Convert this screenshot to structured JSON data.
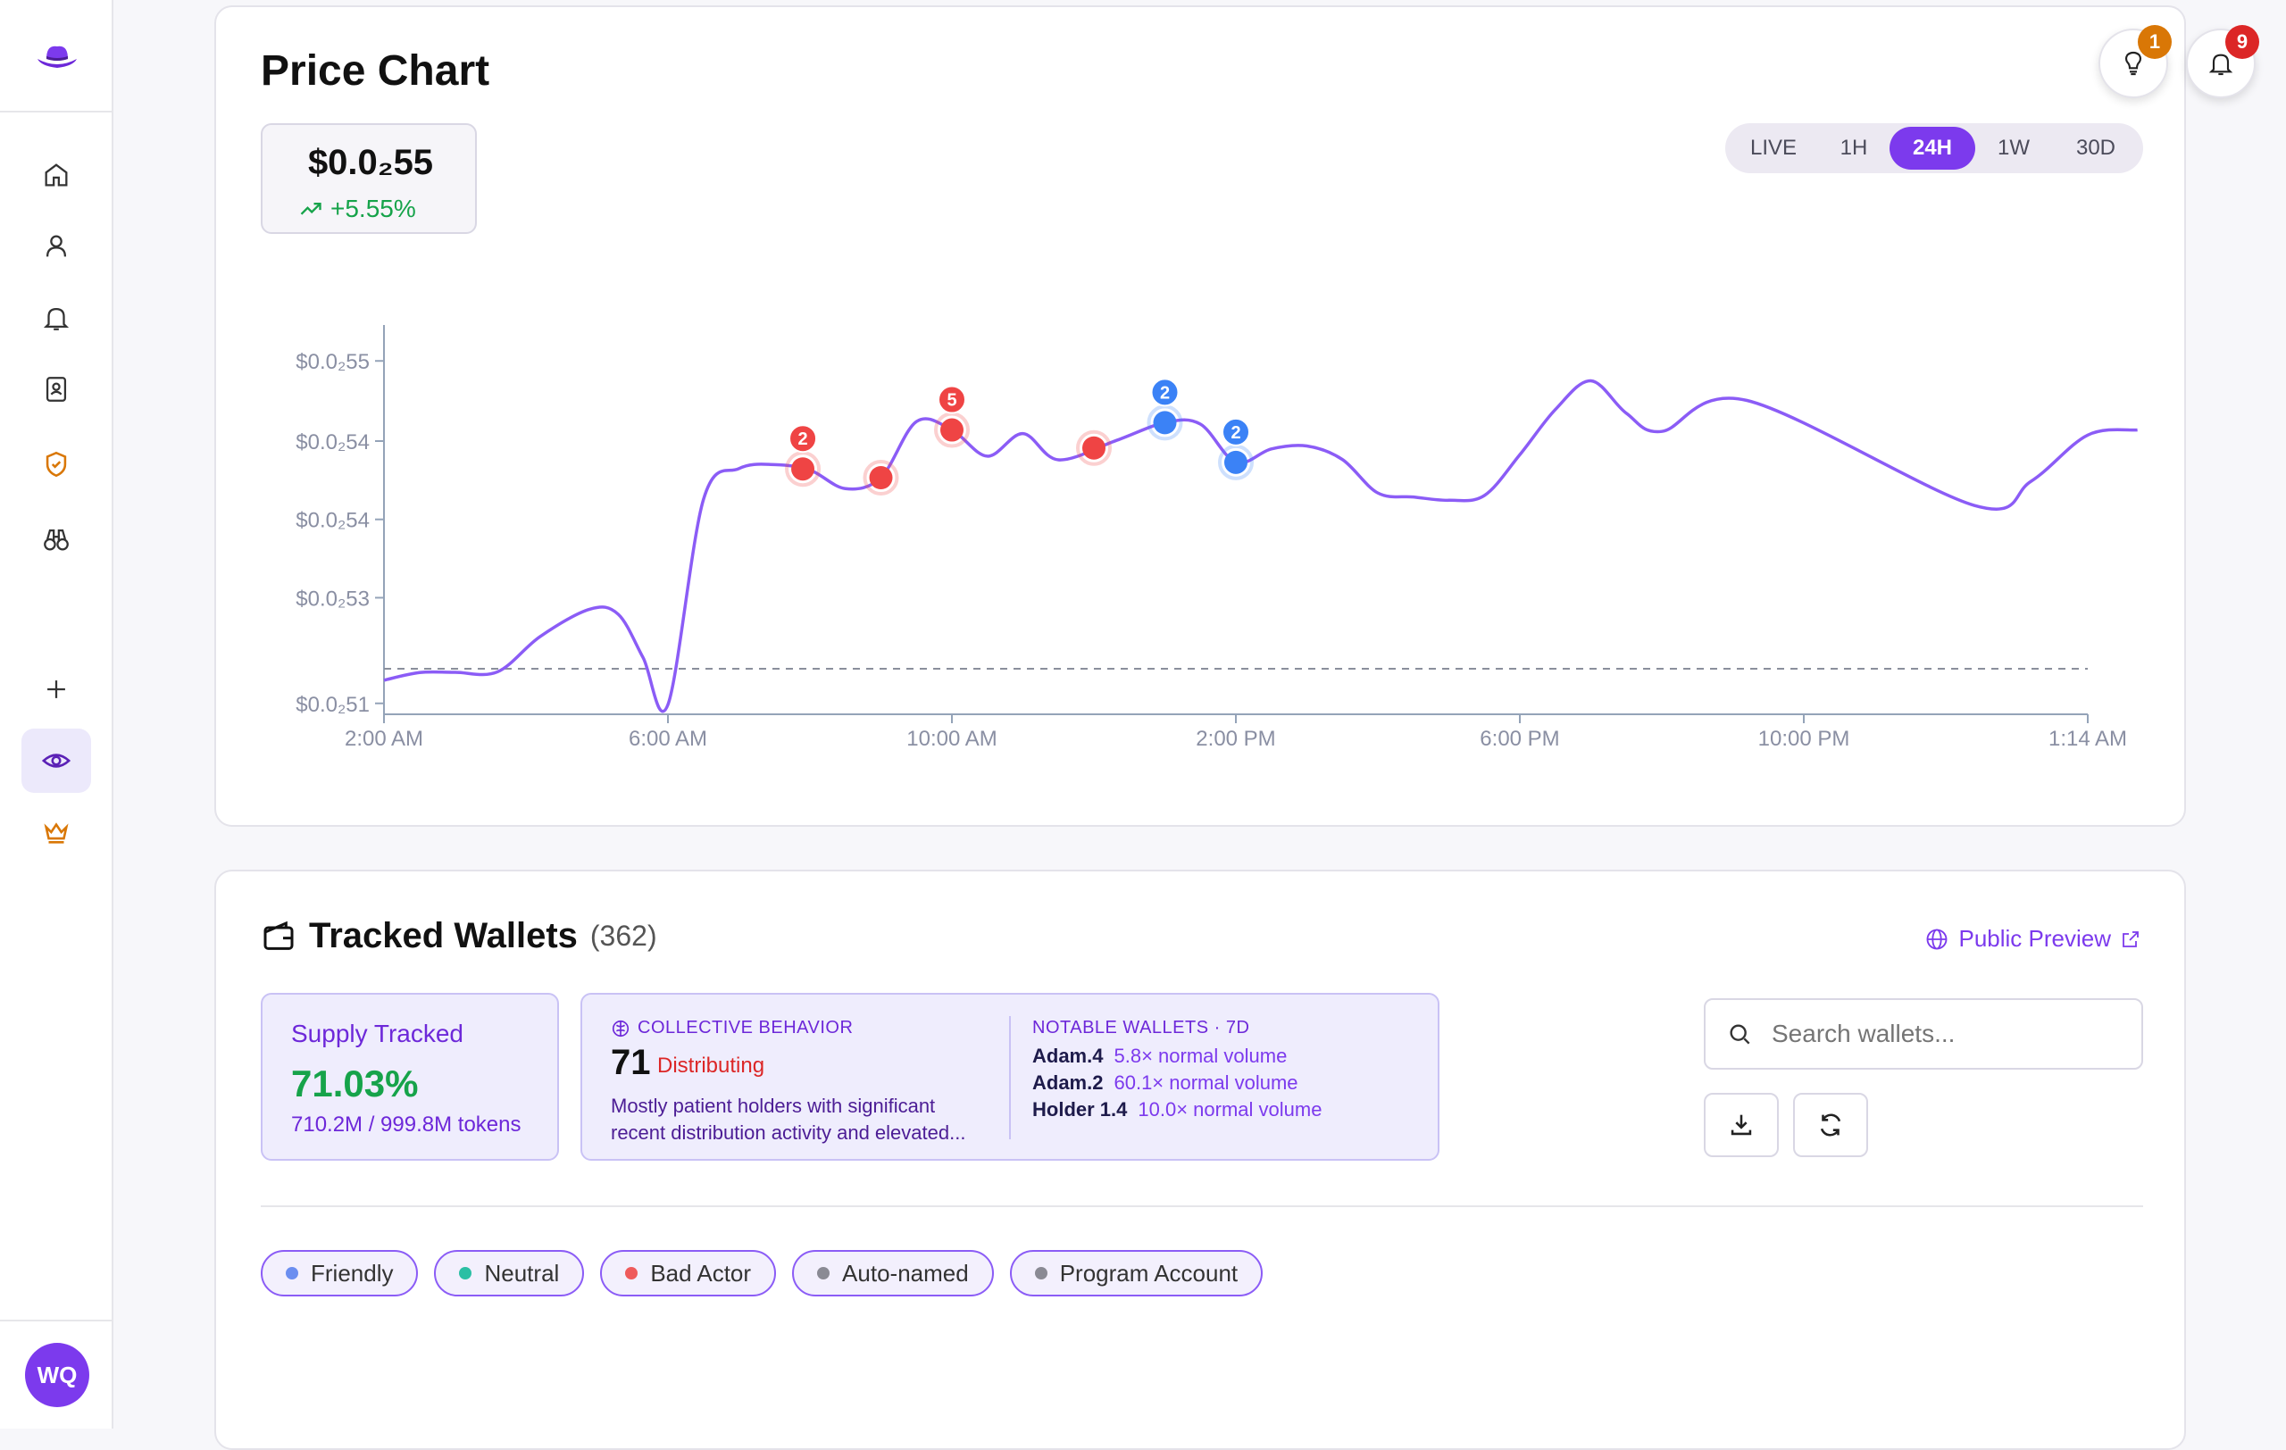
{
  "header": {
    "chart_title": "Price Chart",
    "price": "$0.0₂55",
    "change": "+5.55%",
    "ranges": [
      "LIVE",
      "1H",
      "24H",
      "1W",
      "30D"
    ],
    "active_range": "24H",
    "ideas_badge": "1",
    "notifications_badge": "9"
  },
  "sidebar": {
    "avatar_initials": "WQ",
    "items": [
      "home-icon",
      "user-icon",
      "bell-icon",
      "contacts-icon",
      "shield-icon",
      "binoculars-icon",
      "plus-icon",
      "eye-icon",
      "crown-icon"
    ],
    "active_item": "eye-icon"
  },
  "chart_data": {
    "type": "line",
    "x_ticks": [
      "2:00 AM",
      "6:00 AM",
      "10:00 AM",
      "2:00 PM",
      "6:00 PM",
      "10:00 PM",
      "1:14 AM"
    ],
    "y_ticks": [
      "$0.0₂55",
      "$0.0₂54",
      "$0.0₂54",
      "$0.0₂53",
      "$0.0₂51"
    ],
    "series": [
      {
        "color": "#8b5cf6",
        "points": [
          [
            0,
            0.0935
          ],
          [
            0.5,
            0.1145
          ],
          [
            1,
            0.1152
          ],
          [
            1.6,
            0.1166
          ],
          [
            2.2,
            0.2135
          ],
          [
            2.9,
            0.2885
          ],
          [
            3.3,
            0.2745
          ],
          [
            3.65,
            0.1555
          ],
          [
            4,
            0.0265
          ],
          [
            4.5,
            0.5895
          ],
          [
            5,
            0.6745
          ],
          [
            5.5,
            0.6855
          ],
          [
            6,
            0.6705
          ],
          [
            6.5,
            0.6195
          ],
          [
            7,
            0.6495
          ],
          [
            7.5,
            0.8035
          ],
          [
            8,
            0.7805
          ],
          [
            8.5,
            0.7085
          ],
          [
            9,
            0.7705
          ],
          [
            9.5,
            0.6985
          ],
          [
            10.3,
            0.7505
          ],
          [
            11,
            0.8005
          ],
          [
            11.5,
            0.7965
          ],
          [
            12,
            0.6915
          ],
          [
            12.5,
            0.7285
          ],
          [
            13,
            0.7365
          ],
          [
            13.5,
            0.6995
          ],
          [
            14,
            0.6075
          ],
          [
            14.5,
            0.5965
          ],
          [
            15,
            0.5875
          ],
          [
            15.5,
            0.6005
          ],
          [
            16,
            0.7125
          ],
          [
            16.5,
            0.8365
          ],
          [
            17,
            0.9155
          ],
          [
            17.5,
            0.8265
          ],
          [
            18,
            0.7765
          ],
          [
            19.2,
            0.8615
          ],
          [
            22.4,
            0.5735
          ],
          [
            23.2,
            0.6395
          ],
          [
            24,
            0.7665
          ],
          [
            24.7,
            0.7805
          ]
        ]
      }
    ],
    "reference_line": 0.125,
    "events": [
      {
        "x": 5.9,
        "label": "2",
        "color": "#ef4444"
      },
      {
        "x": 7.0,
        "label": "",
        "color": "#ef4444"
      },
      {
        "x": 8.0,
        "label": "5",
        "color": "#ef4444"
      },
      {
        "x": 10.0,
        "label": "",
        "color": "#ef4444"
      },
      {
        "x": 11.0,
        "label": "2",
        "color": "#3b82f6"
      },
      {
        "x": 12.0,
        "label": "2",
        "color": "#3b82f6"
      }
    ]
  },
  "wallets": {
    "title": "Tracked Wallets",
    "count": "(362)",
    "public_preview": "Public Preview",
    "supply_label": "Supply Tracked",
    "supply_pct": "71.03%",
    "supply_tokens": "710.2M / 999.8M tokens",
    "collective_head": "COLLECTIVE BEHAVIOR",
    "collective_score": "71",
    "collective_state": "Distributing",
    "collective_desc": "Mostly patient holders with significant recent distribution activity and elevated...",
    "notable_head": "NOTABLE WALLETS · 7D",
    "notable": [
      {
        "name": "Adam.4",
        "vol": "5.8× normal volume"
      },
      {
        "name": "Adam.2",
        "vol": "60.1× normal volume"
      },
      {
        "name": "Holder 1.4",
        "vol": "10.0× normal volume"
      }
    ],
    "search_placeholder": "Search wallets...",
    "filters": [
      {
        "label": "Friendly",
        "color": "#6b8ef0"
      },
      {
        "label": "Neutral",
        "color": "#2bbfa4"
      },
      {
        "label": "Bad Actor",
        "color": "#ef5b5b"
      },
      {
        "label": "Auto-named",
        "color": "#8a8a94"
      },
      {
        "label": "Program Account",
        "color": "#8a8a94"
      }
    ]
  }
}
